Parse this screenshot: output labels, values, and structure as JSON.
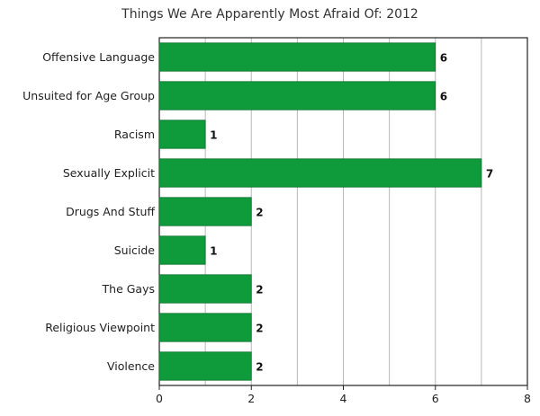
{
  "chart_data": {
    "type": "bar",
    "orientation": "horizontal",
    "title": "Things We Are Apparently Most Afraid Of: 2012",
    "xlabel": "",
    "ylabel": "",
    "categories": [
      "Offensive Language",
      "Unsuited for Age Group",
      "Racism",
      "Sexually Explicit",
      "Drugs And Stuff",
      "Suicide",
      "The Gays",
      "Religious Viewpoint",
      "Violence"
    ],
    "values": [
      6,
      6,
      1,
      7,
      2,
      1,
      2,
      2,
      2
    ],
    "xlim": [
      0,
      8
    ],
    "xticks": [
      0,
      2,
      4,
      6,
      8
    ],
    "grid": true,
    "legend": "none",
    "bar_color": "#0f9b3c"
  }
}
